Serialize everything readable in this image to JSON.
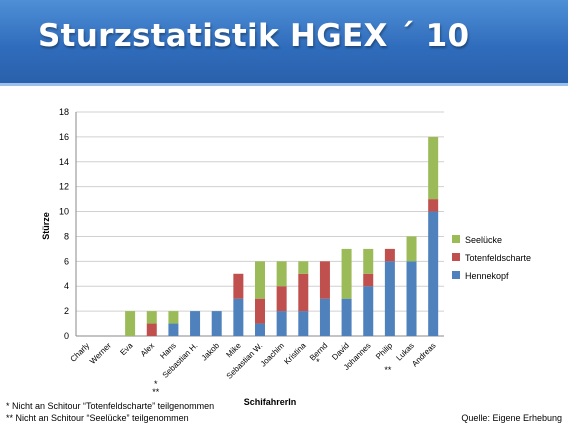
{
  "page": {
    "title": "Sturzstatistik HGEX ´ 10"
  },
  "notes": [
    "* Nicht an Schitour “Totenfeldscharte” teilgenommen",
    "** Nicht an Schitour “Seelücke” teilgenommen"
  ],
  "source": "Quelle: Eigene Erhebung",
  "chart_data": {
    "type": "bar",
    "stacked": true,
    "xlabel": "SchifahrerIn",
    "ylabel": "Stürze",
    "ylim": [
      0,
      18
    ],
    "yticks": [
      0,
      2,
      4,
      6,
      8,
      10,
      12,
      14,
      16,
      18
    ],
    "grid": true,
    "legend_position": "right",
    "categories": [
      "Charly",
      "Werner",
      "Eva",
      "Alex",
      "Hans",
      "Sebastian H.",
      "Jakob",
      "Mike",
      "Sebastian W.",
      "Joachim",
      "Kristina",
      "Bernd",
      "David",
      "Johannes",
      "Philip",
      "Lukas",
      "Andreas"
    ],
    "category_marks": [
      {
        "category": "Alex",
        "text": "*"
      },
      {
        "category": "Alex",
        "text": "**"
      },
      {
        "category": "Bernd",
        "text": "*"
      },
      {
        "category": "Philip",
        "text": "**"
      }
    ],
    "series": [
      {
        "name": "Hennekopf",
        "color": "#4f81bd",
        "values": [
          0,
          0,
          0,
          0,
          1,
          2,
          2,
          3,
          1,
          2,
          2,
          3,
          3,
          4,
          6,
          6,
          10
        ]
      },
      {
        "name": "Totenfeldscharte",
        "color": "#c0504d",
        "values": [
          0,
          0,
          0,
          1,
          0,
          0,
          0,
          2,
          2,
          2,
          3,
          3,
          0,
          1,
          1,
          0,
          1
        ]
      },
      {
        "name": "Seelücke",
        "color": "#9bbb59",
        "values": [
          0,
          0,
          2,
          1,
          1,
          0,
          0,
          0,
          3,
          2,
          1,
          0,
          4,
          2,
          0,
          2,
          5
        ]
      }
    ]
  }
}
